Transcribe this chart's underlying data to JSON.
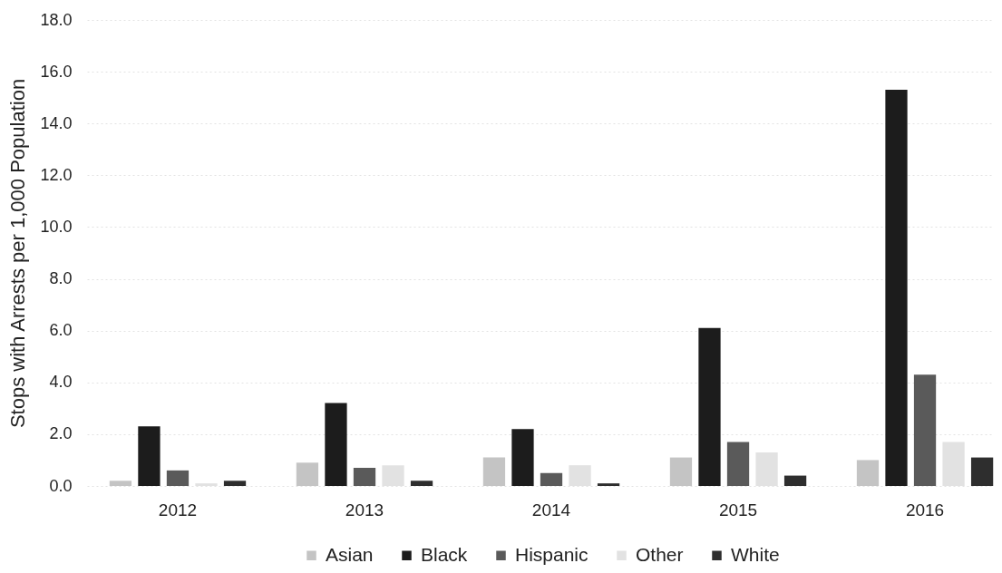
{
  "chart_data": {
    "type": "bar",
    "ylabel": "Stops with Arrests per 1,000 Population",
    "categories": [
      "2012",
      "2013",
      "2014",
      "2015",
      "2016"
    ],
    "series": [
      {
        "name": "Asian",
        "color": "#c4c4c4",
        "values": [
          0.2,
          0.9,
          1.1,
          1.1,
          1.0
        ]
      },
      {
        "name": "Black",
        "color": "#1c1c1c",
        "values": [
          2.3,
          3.2,
          2.2,
          6.1,
          15.3
        ]
      },
      {
        "name": "Hispanic",
        "color": "#5a5a5a",
        "values": [
          0.6,
          0.7,
          0.5,
          1.7,
          4.3
        ]
      },
      {
        "name": "Other",
        "color": "#e2e2e2",
        "values": [
          0.1,
          0.8,
          0.8,
          1.3,
          1.7
        ]
      },
      {
        "name": "White",
        "color": "#2e2e2e",
        "values": [
          0.2,
          0.2,
          0.1,
          0.4,
          1.1
        ]
      }
    ],
    "ylim": [
      0,
      18
    ],
    "yticks": [
      {
        "value": 0,
        "label": "0.0"
      },
      {
        "value": 2,
        "label": "2.0"
      },
      {
        "value": 4,
        "label": "4.0"
      },
      {
        "value": 6,
        "label": "6.0"
      },
      {
        "value": 8,
        "label": "8.0"
      },
      {
        "value": 10,
        "label": "10.0"
      },
      {
        "value": 12,
        "label": "12.0"
      },
      {
        "value": 14,
        "label": "14.0"
      },
      {
        "value": 16,
        "label": "16.0"
      },
      {
        "value": 18,
        "label": "18.0"
      }
    ],
    "grid": "y",
    "legend": "bottom"
  }
}
